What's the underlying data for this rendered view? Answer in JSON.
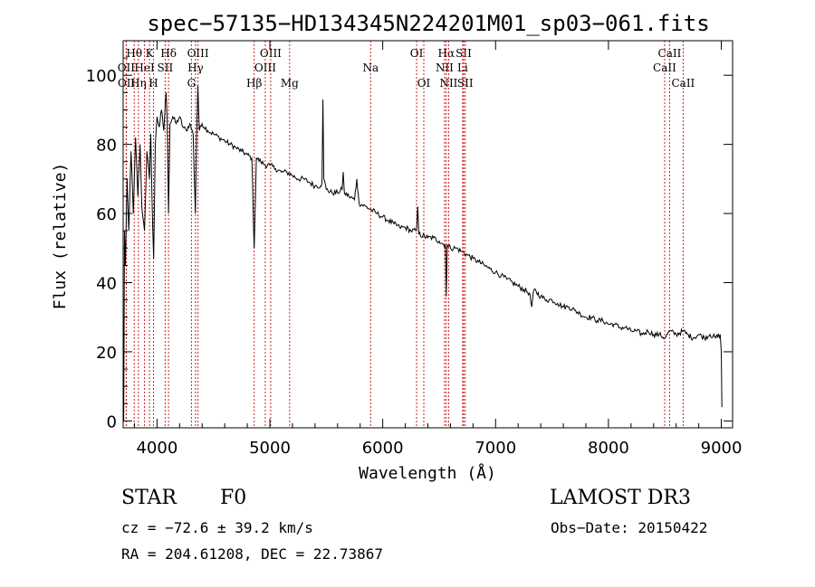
{
  "chart_data": {
    "type": "line",
    "title": "spec−57135−HD134345N224201M01_sp03−061.fits",
    "xlabel": "Wavelength (Å)",
    "ylabel": "Flux (relative)",
    "xlim": [
      3700,
      9100
    ],
    "ylim": [
      -2,
      110
    ],
    "x_ticks": [
      4000,
      5000,
      6000,
      7000,
      8000,
      9000
    ],
    "y_ticks": [
      0,
      20,
      40,
      60,
      80,
      100
    ],
    "grid": false,
    "series": [
      {
        "name": "spectrum",
        "anchors": [
          [
            3700,
            30
          ],
          [
            3705,
            0
          ],
          [
            3712,
            55
          ],
          [
            3720,
            45
          ],
          [
            3735,
            70
          ],
          [
            3750,
            55
          ],
          [
            3770,
            78
          ],
          [
            3790,
            60
          ],
          [
            3810,
            82
          ],
          [
            3830,
            65
          ],
          [
            3850,
            80
          ],
          [
            3865,
            62
          ],
          [
            3889,
            55
          ],
          [
            3910,
            78
          ],
          [
            3933,
            70
          ],
          [
            3945,
            83
          ],
          [
            3955,
            65
          ],
          [
            3970,
            47
          ],
          [
            3985,
            80
          ],
          [
            4000,
            88
          ],
          [
            4020,
            85
          ],
          [
            4040,
            90
          ],
          [
            4060,
            84
          ],
          [
            4080,
            95
          ],
          [
            4090,
            87
          ],
          [
            4102,
            60
          ],
          [
            4115,
            86
          ],
          [
            4140,
            88
          ],
          [
            4170,
            86
          ],
          [
            4200,
            88
          ],
          [
            4230,
            85
          ],
          [
            4260,
            84
          ],
          [
            4290,
            86
          ],
          [
            4320,
            83
          ],
          [
            4340,
            60
          ],
          [
            4350,
            82
          ],
          [
            4362,
            97
          ],
          [
            4375,
            84
          ],
          [
            4400,
            86
          ],
          [
            4450,
            84
          ],
          [
            4500,
            83
          ],
          [
            4550,
            82
          ],
          [
            4600,
            81
          ],
          [
            4650,
            80
          ],
          [
            4700,
            79
          ],
          [
            4750,
            78
          ],
          [
            4800,
            77
          ],
          [
            4840,
            76
          ],
          [
            4861,
            50
          ],
          [
            4880,
            76
          ],
          [
            4920,
            75
          ],
          [
            4960,
            74
          ],
          [
            5000,
            74
          ],
          [
            5050,
            73
          ],
          [
            5100,
            72
          ],
          [
            5150,
            72
          ],
          [
            5200,
            71
          ],
          [
            5250,
            70
          ],
          [
            5300,
            70
          ],
          [
            5350,
            69
          ],
          [
            5400,
            68
          ],
          [
            5450,
            68
          ],
          [
            5462,
            69
          ],
          [
            5470,
            93
          ],
          [
            5478,
            70
          ],
          [
            5500,
            67
          ],
          [
            5550,
            66
          ],
          [
            5600,
            66
          ],
          [
            5640,
            67
          ],
          [
            5650,
            72
          ],
          [
            5660,
            66
          ],
          [
            5700,
            65
          ],
          [
            5750,
            64
          ],
          [
            5770,
            70
          ],
          [
            5790,
            63
          ],
          [
            5850,
            62
          ],
          [
            5900,
            61
          ],
          [
            5950,
            60
          ],
          [
            6000,
            59
          ],
          [
            6050,
            58
          ],
          [
            6100,
            57
          ],
          [
            6150,
            56
          ],
          [
            6200,
            56
          ],
          [
            6250,
            55
          ],
          [
            6300,
            55
          ],
          [
            6310,
            62
          ],
          [
            6320,
            54
          ],
          [
            6400,
            53
          ],
          [
            6450,
            53
          ],
          [
            6500,
            52
          ],
          [
            6540,
            51
          ],
          [
            6555,
            51
          ],
          [
            6563,
            36
          ],
          [
            6572,
            51
          ],
          [
            6600,
            50
          ],
          [
            6650,
            50
          ],
          [
            6700,
            49
          ],
          [
            6750,
            48
          ],
          [
            6800,
            47
          ],
          [
            6850,
            46
          ],
          [
            6900,
            45
          ],
          [
            6950,
            44
          ],
          [
            7000,
            43
          ],
          [
            7050,
            42
          ],
          [
            7100,
            41
          ],
          [
            7150,
            40
          ],
          [
            7200,
            39
          ],
          [
            7250,
            38
          ],
          [
            7300,
            37
          ],
          [
            7320,
            33
          ],
          [
            7340,
            38
          ],
          [
            7400,
            36
          ],
          [
            7450,
            35
          ],
          [
            7500,
            35
          ],
          [
            7550,
            34
          ],
          [
            7600,
            33
          ],
          [
            7650,
            33
          ],
          [
            7700,
            32
          ],
          [
            7750,
            31
          ],
          [
            7800,
            30
          ],
          [
            7850,
            30
          ],
          [
            7900,
            29
          ],
          [
            7950,
            29
          ],
          [
            8000,
            28
          ],
          [
            8050,
            28
          ],
          [
            8100,
            27
          ],
          [
            8150,
            27
          ],
          [
            8200,
            26
          ],
          [
            8250,
            26
          ],
          [
            8300,
            25
          ],
          [
            8350,
            26
          ],
          [
            8400,
            25
          ],
          [
            8450,
            25
          ],
          [
            8500,
            24
          ],
          [
            8542,
            26
          ],
          [
            8600,
            25
          ],
          [
            8662,
            26
          ],
          [
            8700,
            25
          ],
          [
            8750,
            24
          ],
          [
            8800,
            25
          ],
          [
            8850,
            24
          ],
          [
            8900,
            25
          ],
          [
            8950,
            24
          ],
          [
            8990,
            25
          ],
          [
            9000,
            20
          ],
          [
            9005,
            4
          ]
        ]
      }
    ],
    "line_markers": [
      {
        "label": "Hθ",
        "x": 3798,
        "row": 1
      },
      {
        "label": "OII",
        "x": 3727,
        "row": 2
      },
      {
        "label": "OII",
        "x": 3729,
        "row": 3
      },
      {
        "label": "K",
        "x": 3934,
        "row": 1
      },
      {
        "label": "HeI",
        "x": 3889,
        "row": 2
      },
      {
        "label": "Hη",
        "x": 3835,
        "row": 3
      },
      {
        "label": "H",
        "x": 3969,
        "row": 3
      },
      {
        "label": "SII",
        "x": 4072,
        "row": 2
      },
      {
        "label": "Hδ",
        "x": 4102,
        "row": 1
      },
      {
        "label": "OIII",
        "x": 4363,
        "row": 1
      },
      {
        "label": "Hγ",
        "x": 4341,
        "row": 2
      },
      {
        "label": "G",
        "x": 4305,
        "row": 3
      },
      {
        "label": "Hβ",
        "x": 4861,
        "row": 3
      },
      {
        "label": "OIII",
        "x": 5007,
        "row": 1
      },
      {
        "label": "OIII",
        "x": 4959,
        "row": 2
      },
      {
        "label": "Mg",
        "x": 5175,
        "row": 3
      },
      {
        "label": "Na",
        "x": 5893,
        "row": 2
      },
      {
        "label": "OI",
        "x": 6300,
        "row": 1
      },
      {
        "label": "OI",
        "x": 6364,
        "row": 3
      },
      {
        "label": "Hα",
        "x": 6563,
        "row": 1
      },
      {
        "label": "NII",
        "x": 6548,
        "row": 2
      },
      {
        "label": "NII",
        "x": 6584,
        "row": 3
      },
      {
        "label": "SII",
        "x": 6717,
        "row": 1
      },
      {
        "label": "Li",
        "x": 6708,
        "row": 2
      },
      {
        "label": "SII",
        "x": 6731,
        "row": 3
      },
      {
        "label": "CaII",
        "x": 8542,
        "row": 1
      },
      {
        "label": "CaII",
        "x": 8498,
        "row": 2
      },
      {
        "label": "CaII",
        "x": 8662,
        "row": 3
      }
    ]
  },
  "info": {
    "object_class": "STAR",
    "subclass": "F0",
    "survey": "LAMOST DR3",
    "cz_text": "cz = −72.6 ± 39.2 km/s",
    "obs_date_text": "Obs−Date: 20150422",
    "coords_text": "RA = 204.61208, DEC =  22.73867"
  },
  "colors": {
    "spectrum": "#000000",
    "marker_line": "#cc2222",
    "axis": "#000000"
  }
}
